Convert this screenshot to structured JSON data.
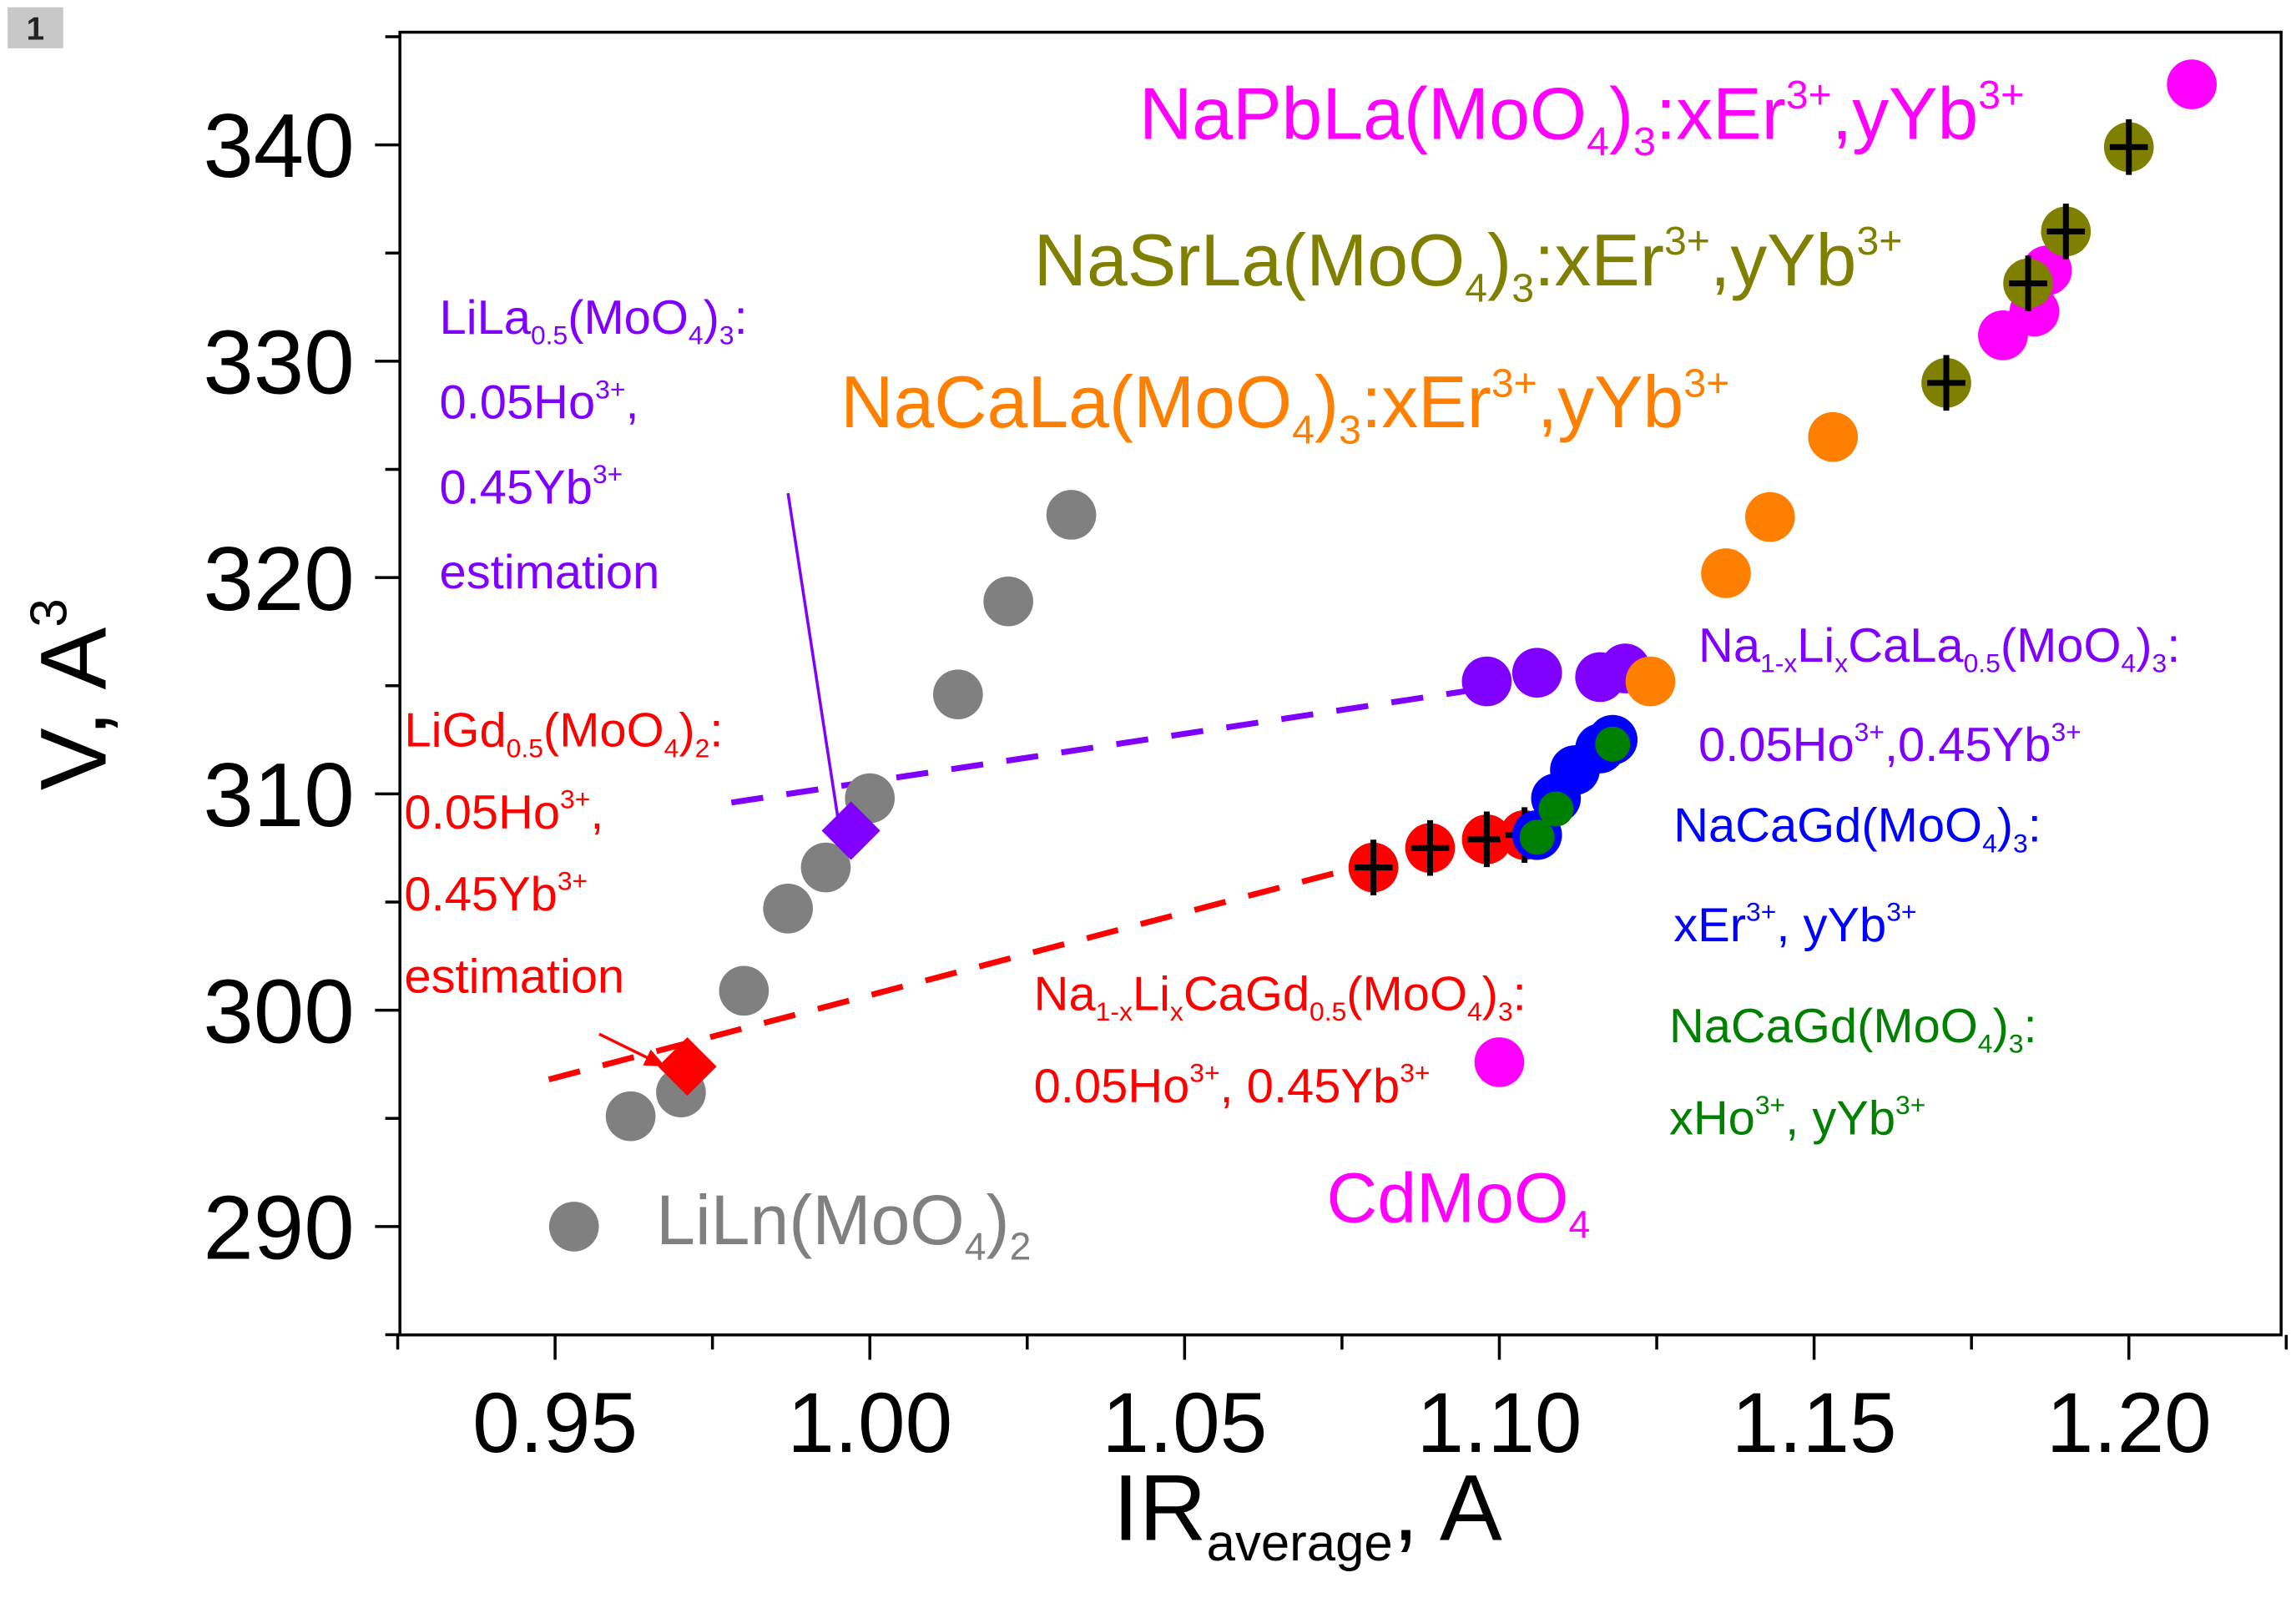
{
  "badge": "1",
  "chart_data": {
    "type": "scatter",
    "xlabel": [
      {
        "t": "IR"
      },
      {
        "t": "average",
        "s": "sub"
      },
      {
        "t": ", A"
      }
    ],
    "ylabel": [
      {
        "t": "V, A"
      },
      {
        "t": "3",
        "s": "sup"
      }
    ],
    "xlim": [
      0.925,
      1.224
    ],
    "ylim": [
      285,
      345.2
    ],
    "xticks": [
      "0.95",
      "1.00",
      "1.05",
      "1.10",
      "1.15",
      "1.20"
    ],
    "yticks": [
      "290",
      "300",
      "310",
      "320",
      "330",
      "340"
    ],
    "grid": false,
    "series": [
      {
        "name": "LiLn(MoO4)2",
        "color": "#808080",
        "marker": "circle",
        "points": [
          [
            0.962,
            295.1
          ],
          [
            0.97,
            296.2
          ],
          [
            0.98,
            300.9
          ],
          [
            0.987,
            304.7
          ],
          [
            0.993,
            306.6
          ],
          [
            1.0,
            309.8
          ],
          [
            1.014,
            314.6
          ],
          [
            1.022,
            318.9
          ],
          [
            1.032,
            322.9
          ]
        ]
      },
      {
        "name": "Na1-xLixCaLa0.5(MoO4)3",
        "color": "#8000ff",
        "marker": "circle",
        "points": [
          [
            1.098,
            315.2
          ],
          [
            1.106,
            315.6
          ],
          [
            1.116,
            315.4
          ],
          [
            1.12,
            315.8
          ]
        ]
      },
      {
        "name": "NaCaLa(MoO4)3",
        "color": "#ff8000",
        "marker": "circle",
        "points": [
          [
            1.124,
            315.2
          ],
          [
            1.136,
            320.2
          ],
          [
            1.143,
            322.8
          ],
          [
            1.153,
            326.5
          ]
        ]
      },
      {
        "name": "NaPbLa(MoO4)3",
        "color": "#ff00ff",
        "marker": "circle",
        "points": [
          [
            1.18,
            331.2
          ],
          [
            1.185,
            332.3
          ],
          [
            1.187,
            334.2
          ],
          [
            1.21,
            342.8
          ],
          [
            1.1,
            297.6
          ]
        ]
      },
      {
        "name": "NaSrLa(MoO4)3",
        "color": "#808000",
        "marker": "circle-cross",
        "points": [
          [
            1.171,
            329.0
          ],
          [
            1.184,
            333.6
          ],
          [
            1.19,
            336.0
          ],
          [
            1.2,
            339.9
          ]
        ]
      },
      {
        "name": "Na1-xLixCaGd0.5(MoO4)3",
        "color": "#ff0000",
        "marker": "circle-cross",
        "points": [
          [
            1.08,
            306.6
          ],
          [
            1.089,
            307.5
          ],
          [
            1.098,
            307.9
          ],
          [
            1.104,
            308.1
          ]
        ]
      },
      {
        "name": "NaCaGd(MoO4)3:xEr,yYb",
        "color": "#0000ff",
        "marker": "circle",
        "points": [
          [
            1.106,
            308.1
          ],
          [
            1.109,
            309.8
          ],
          [
            1.112,
            311.1
          ],
          [
            1.116,
            312.1
          ],
          [
            1.118,
            312.5
          ]
        ]
      },
      {
        "name": "NaCaGd(MoO4)3:xHo,yYb",
        "color": "#008000",
        "marker": "circle-small",
        "points": [
          [
            1.106,
            308.0
          ],
          [
            1.109,
            309.3
          ],
          [
            1.118,
            312.3
          ]
        ]
      },
      {
        "name": "LiLa0.5(MoO4)3 estimation",
        "color": "#8000ff",
        "marker": "diamond",
        "points": [
          [
            0.997,
            308.3
          ]
        ]
      },
      {
        "name": "LiGd0.5(MoO4)2 estimation",
        "color": "#ff0000",
        "marker": "diamond",
        "points": [
          [
            0.971,
            297.4
          ]
        ]
      }
    ],
    "dashed_lines": [
      {
        "color": "#8000ff",
        "from": [
          0.978,
          309.6
        ],
        "to": [
          1.098,
          314.9
        ]
      },
      {
        "color": "#ff0000",
        "from": [
          0.949,
          296.8
        ],
        "to": [
          1.11,
          309.1
        ]
      }
    ],
    "arrows": [
      {
        "color": "#8000ff",
        "from": [
          0.987,
          323.9
        ],
        "to": [
          0.9955,
          307.8
        ]
      },
      {
        "color": "#ff0000",
        "from": [
          0.957,
          298.9
        ],
        "to": [
          0.9675,
          297.4
        ]
      }
    ],
    "legend_marker": {
      "color": "#808080",
      "point": [
        0.953,
        290.0
      ]
    },
    "annotations": [
      {
        "id": "napbla",
        "color": "#ff00ff",
        "size": "big",
        "lines": [
          [
            {
              "t": "NaPbLa(MoO"
            },
            {
              "t": "4",
              "s": "sub"
            },
            {
              "t": ")"
            },
            {
              "t": "3",
              "s": "sub"
            },
            {
              "t": ":xEr"
            },
            {
              "t": "3+",
              "s": "sup"
            },
            {
              "t": ",yYb"
            },
            {
              "t": "3+",
              "s": "sup"
            }
          ]
        ]
      },
      {
        "id": "nasrla",
        "color": "#808000",
        "size": "big",
        "lines": [
          [
            {
              "t": "NaSrLa(MoO"
            },
            {
              "t": "4",
              "s": "sub"
            },
            {
              "t": ")"
            },
            {
              "t": "3",
              "s": "sub"
            },
            {
              "t": ":xEr"
            },
            {
              "t": "3+",
              "s": "sup"
            },
            {
              "t": ",yYb"
            },
            {
              "t": "3+",
              "s": "sup"
            }
          ]
        ]
      },
      {
        "id": "nacala",
        "color": "#ff8000",
        "size": "big",
        "lines": [
          [
            {
              "t": "NaCaLa(MoO"
            },
            {
              "t": "4",
              "s": "sub"
            },
            {
              "t": ")"
            },
            {
              "t": "3",
              "s": "sub"
            },
            {
              "t": ":xEr"
            },
            {
              "t": "3+",
              "s": "sup"
            },
            {
              "t": ",yYb"
            },
            {
              "t": "3+",
              "s": "sup"
            }
          ]
        ]
      },
      {
        "id": "lila",
        "color": "#8000ff",
        "size": "small",
        "lines": [
          [
            {
              "t": "LiLa"
            },
            {
              "t": "0.5",
              "s": "sub"
            },
            {
              "t": "(MoO"
            },
            {
              "t": "4",
              "s": "sub"
            },
            {
              "t": ")"
            },
            {
              "t": "3",
              "s": "sub"
            },
            {
              "t": ":"
            }
          ],
          [
            {
              "t": "0.05Ho"
            },
            {
              "t": "3+",
              "s": "sup"
            },
            {
              "t": ","
            }
          ],
          [
            {
              "t": "0.45Yb"
            },
            {
              "t": "3+",
              "s": "sup"
            }
          ],
          [
            {
              "t": "estimation"
            }
          ]
        ]
      },
      {
        "id": "ligd",
        "color": "#ff0000",
        "size": "small",
        "lines": [
          [
            {
              "t": "LiGd"
            },
            {
              "t": "0.5",
              "s": "sub"
            },
            {
              "t": "(MoO"
            },
            {
              "t": "4",
              "s": "sub"
            },
            {
              "t": ")"
            },
            {
              "t": "2",
              "s": "sub"
            },
            {
              "t": ":"
            }
          ],
          [
            {
              "t": "0.05Ho"
            },
            {
              "t": "3+",
              "s": "sup"
            },
            {
              "t": ","
            }
          ],
          [
            {
              "t": "0.45Yb"
            },
            {
              "t": "3+",
              "s": "sup"
            }
          ],
          [
            {
              "t": "estimation"
            }
          ]
        ]
      },
      {
        "id": "nalicala",
        "color": "#8000ff",
        "size": "small",
        "lines": [
          [
            {
              "t": "Na"
            },
            {
              "t": "1-x",
              "s": "sub"
            },
            {
              "t": "Li"
            },
            {
              "t": "x",
              "s": "sub"
            },
            {
              "t": "CaLa"
            },
            {
              "t": "0.5",
              "s": "sub"
            },
            {
              "t": "(MoO"
            },
            {
              "t": "4",
              "s": "sub"
            },
            {
              "t": ")"
            },
            {
              "t": "3",
              "s": "sub"
            },
            {
              "t": ":"
            }
          ],
          [
            {
              "t": "0.05Ho"
            },
            {
              "t": "3+",
              "s": "sup"
            },
            {
              "t": ",0.45Yb"
            },
            {
              "t": "3+",
              "s": "sup"
            }
          ]
        ]
      },
      {
        "id": "nacagd-er",
        "color": "#0000ff",
        "size": "small",
        "lines": [
          [
            {
              "t": "NaCaGd(MoO"
            },
            {
              "t": "4",
              "s": "sub"
            },
            {
              "t": ")"
            },
            {
              "t": "3",
              "s": "sub"
            },
            {
              "t": ":"
            }
          ],
          [
            {
              "t": "xEr"
            },
            {
              "t": "3+",
              "s": "sup"
            },
            {
              "t": ", yYb"
            },
            {
              "t": "3+",
              "s": "sup"
            }
          ]
        ]
      },
      {
        "id": "nacagd-ho",
        "color": "#008000",
        "size": "small",
        "lines": [
          [
            {
              "t": "NaCaGd(MoO"
            },
            {
              "t": "4",
              "s": "sub"
            },
            {
              "t": ")"
            },
            {
              "t": "3",
              "s": "sub"
            },
            {
              "t": ":"
            }
          ],
          [
            {
              "t": "xHo"
            },
            {
              "t": "3+",
              "s": "sup"
            },
            {
              "t": ", yYb"
            },
            {
              "t": "3+",
              "s": "sup"
            }
          ]
        ]
      },
      {
        "id": "nalicagd",
        "color": "#ff0000",
        "size": "small",
        "lines": [
          [
            {
              "t": "Na"
            },
            {
              "t": "1-x",
              "s": "sub"
            },
            {
              "t": "Li"
            },
            {
              "t": "x",
              "s": "sub"
            },
            {
              "t": "CaGd"
            },
            {
              "t": "0.5",
              "s": "sub"
            },
            {
              "t": "(MoO"
            },
            {
              "t": "4",
              "s": "sub"
            },
            {
              "t": ")"
            },
            {
              "t": "3",
              "s": "sub"
            },
            {
              "t": ":"
            }
          ],
          [
            {
              "t": "0.05Ho"
            },
            {
              "t": "3+",
              "s": "sup"
            },
            {
              "t": ", 0.45Yb"
            },
            {
              "t": "3+",
              "s": "sup"
            }
          ]
        ]
      },
      {
        "id": "cdmoo4",
        "color": "#ff00ff",
        "size": "big",
        "lines": [
          [
            {
              "t": "CdMoO"
            },
            {
              "t": "4",
              "s": "sub"
            }
          ]
        ]
      },
      {
        "id": "liln",
        "color": "#808080",
        "size": "big",
        "lines": [
          [
            {
              "t": "LiLn(MoO"
            },
            {
              "t": "4",
              "s": "sub"
            },
            {
              "t": ")"
            },
            {
              "t": "2",
              "s": "sub"
            }
          ]
        ]
      }
    ]
  }
}
